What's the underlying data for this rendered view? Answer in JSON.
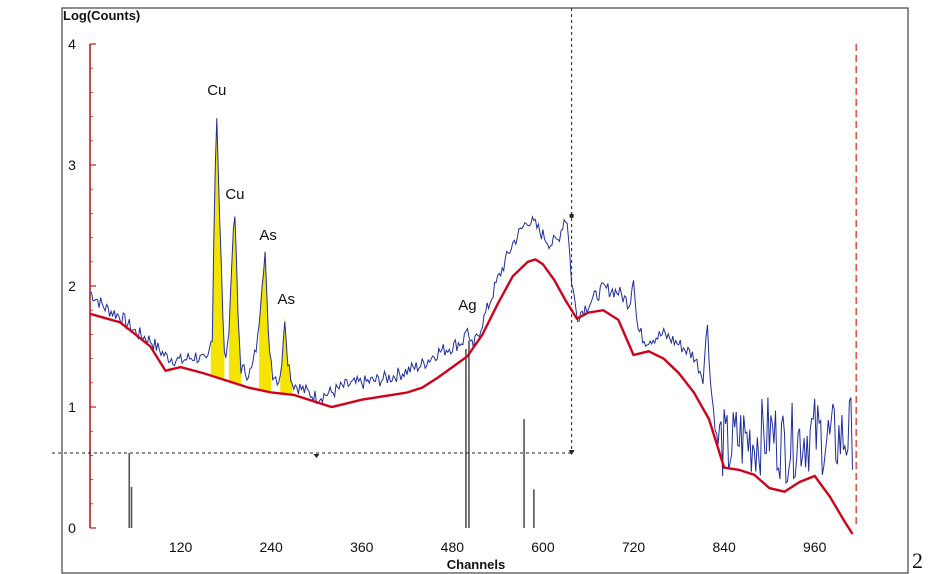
{
  "figure_number": "2",
  "chart_data": {
    "type": "line",
    "title": "",
    "ylabel": "Log(Counts)",
    "xlabel": "Channels",
    "xlim": [
      0,
      1020
    ],
    "ylim": [
      0,
      4
    ],
    "x_ticks": [
      120,
      240,
      360,
      480,
      600,
      720,
      840,
      960
    ],
    "y_ticks": [
      0,
      1,
      2,
      3,
      4
    ],
    "spectrum_color": "#1f2f9a",
    "background_color": "#d0021b",
    "peak_fill_color": "#f5e400",
    "marker_color": "#555555",
    "series": [
      {
        "name": "",
        "role": "spectrum",
        "x": [
          0,
          20,
          40,
          60,
          80,
          100,
          120,
          140,
          155,
          162,
          165,
          168,
          172,
          178,
          184,
          188,
          192,
          196,
          200,
          208,
          214,
          222,
          228,
          232,
          236,
          242,
          250,
          255,
          258,
          262,
          268,
          280,
          300,
          320,
          340,
          360,
          380,
          400,
          420,
          440,
          460,
          480,
          495,
          500,
          503,
          508,
          520,
          540,
          560,
          580,
          590,
          600,
          610,
          620,
          628,
          632,
          638,
          645,
          660,
          680,
          700,
          715,
          720,
          725,
          735,
          760,
          780,
          800,
          812,
          818,
          822,
          830,
          845,
          860,
          880,
          900,
          920,
          940,
          960,
          980,
          1000,
          1010
        ],
        "y": [
          1.95,
          1.82,
          1.75,
          1.62,
          1.55,
          1.42,
          1.38,
          1.42,
          1.36,
          1.6,
          2.8,
          3.42,
          2.5,
          1.4,
          1.6,
          2.25,
          2.58,
          1.75,
          1.32,
          1.28,
          1.3,
          1.55,
          2.05,
          2.28,
          1.6,
          1.28,
          1.22,
          1.4,
          1.75,
          1.4,
          1.2,
          1.15,
          1.08,
          1.12,
          1.18,
          1.2,
          1.22,
          1.25,
          1.3,
          1.35,
          1.45,
          1.5,
          1.55,
          1.68,
          1.5,
          1.5,
          1.7,
          2.05,
          2.35,
          2.55,
          2.5,
          2.42,
          2.35,
          2.38,
          2.55,
          2.55,
          2.05,
          1.75,
          1.85,
          1.98,
          1.95,
          1.85,
          2.1,
          1.65,
          1.55,
          1.6,
          1.52,
          1.42,
          1.25,
          1.7,
          1.2,
          0.75,
          0.65,
          0.75,
          0.72,
          0.8,
          0.68,
          0.75,
          0.78,
          0.72,
          0.75,
          0.8
        ]
      },
      {
        "name": "",
        "role": "background fit",
        "x": [
          0,
          40,
          80,
          100,
          120,
          150,
          180,
          210,
          240,
          270,
          300,
          320,
          340,
          360,
          380,
          400,
          420,
          440,
          460,
          480,
          500,
          520,
          540,
          560,
          580,
          590,
          600,
          615,
          630,
          645,
          660,
          680,
          700,
          720,
          740,
          760,
          780,
          800,
          820,
          840,
          860,
          880,
          900,
          920,
          940,
          960,
          980,
          1000,
          1010
        ],
        "y": [
          1.77,
          1.7,
          1.5,
          1.3,
          1.33,
          1.28,
          1.22,
          1.16,
          1.12,
          1.1,
          1.04,
          1.0,
          1.03,
          1.06,
          1.08,
          1.1,
          1.12,
          1.16,
          1.24,
          1.33,
          1.42,
          1.6,
          1.85,
          2.08,
          2.2,
          2.22,
          2.18,
          2.05,
          1.88,
          1.73,
          1.78,
          1.8,
          1.72,
          1.43,
          1.46,
          1.4,
          1.28,
          1.12,
          0.9,
          0.5,
          0.48,
          0.44,
          0.33,
          0.3,
          0.38,
          0.43,
          0.26,
          0.05,
          -0.05
        ]
      }
    ],
    "annotations": [
      {
        "text": "Cu",
        "x": 168,
        "y": 3.58
      },
      {
        "text": "Cu",
        "x": 192,
        "y": 2.72
      },
      {
        "text": "As",
        "x": 236,
        "y": 2.38
      },
      {
        "text": "As",
        "x": 260,
        "y": 1.85
      },
      {
        "text": "Ag",
        "x": 500,
        "y": 1.8
      }
    ],
    "peak_fill_regions": [
      [
        160,
        178
      ],
      [
        184,
        200
      ],
      [
        224,
        240
      ],
      [
        252,
        268
      ]
    ],
    "line_markers": [
      {
        "x": 52,
        "height": 0.62
      },
      {
        "x": 55,
        "height": 0.34
      },
      {
        "x": 498,
        "height": 1.48
      },
      {
        "x": 502,
        "height": 1.55
      },
      {
        "x": 575,
        "height": 0.9
      },
      {
        "x": 588,
        "height": 0.32
      }
    ],
    "cursor": {
      "x": 638,
      "y": 0.62
    },
    "roi_right_marker_x": 1015
  }
}
